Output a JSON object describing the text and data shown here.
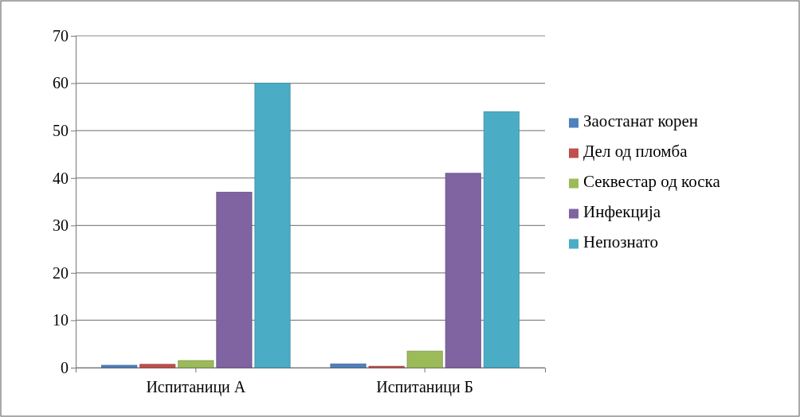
{
  "chart_data": {
    "type": "bar",
    "categories": [
      "Испитаници А",
      "Испитаници Б"
    ],
    "series": [
      {
        "name": "Заостанат корен",
        "color": "#4f81bd",
        "values": [
          0.5,
          0.8
        ]
      },
      {
        "name": "Дел од пломба",
        "color": "#c0504d",
        "values": [
          0.7,
          0.3
        ]
      },
      {
        "name": "Секвестар од коска",
        "color": "#9bbb59",
        "values": [
          1.5,
          3.5
        ]
      },
      {
        "name": "Инфекција",
        "color": "#8064a2",
        "values": [
          37,
          41
        ]
      },
      {
        "name": "Непознато",
        "color": "#4bacc6",
        "values": [
          60,
          54
        ]
      }
    ],
    "ylim": [
      0,
      70
    ],
    "yticks": [
      0,
      10,
      20,
      30,
      40,
      50,
      60,
      70
    ],
    "grid": "y",
    "legend": "right"
  }
}
